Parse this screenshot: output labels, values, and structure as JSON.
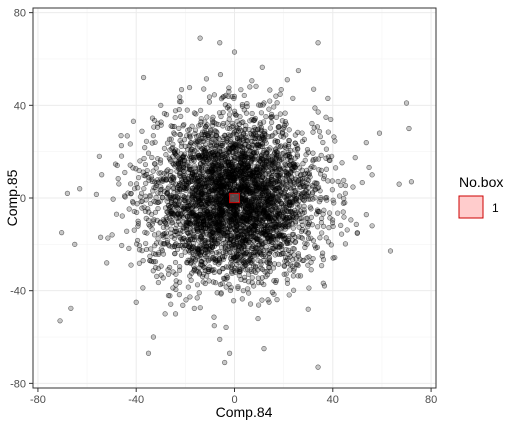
{
  "chart_data": {
    "type": "scatter",
    "title": "",
    "xlabel": "Comp.84",
    "ylabel": "Comp.85",
    "xlim": [
      -82,
      82
    ],
    "ylim": [
      -82,
      82
    ],
    "xticks": [
      -80,
      -40,
      0,
      40,
      80
    ],
    "yticks": [
      -80,
      -40,
      0,
      40,
      80
    ],
    "grid": true,
    "point_color": "#000000",
    "point_fill_opacity": 0.22,
    "point_count": 4000,
    "spread_sd": 17,
    "outliers": [
      {
        "x": -71,
        "y": -53
      },
      {
        "x": -68,
        "y": 2
      },
      {
        "x": -63,
        "y": 4
      },
      {
        "x": -65,
        "y": -20
      },
      {
        "x": -37,
        "y": 52
      },
      {
        "x": -35,
        "y": -67
      },
      {
        "x": -33,
        "y": -60
      },
      {
        "x": -14,
        "y": 69
      },
      {
        "x": -6,
        "y": 67
      },
      {
        "x": -6,
        "y": -61
      },
      {
        "x": -4,
        "y": -71
      },
      {
        "x": -2,
        "y": -67
      },
      {
        "x": 0,
        "y": 63
      },
      {
        "x": 12,
        "y": -65
      },
      {
        "x": 34,
        "y": 67
      },
      {
        "x": 34,
        "y": -73
      },
      {
        "x": 70,
        "y": 41
      },
      {
        "x": 71,
        "y": 30
      },
      {
        "x": 72,
        "y": 7
      },
      {
        "x": 67,
        "y": 6
      },
      {
        "x": 59,
        "y": 28
      },
      {
        "x": 56,
        "y": 10
      },
      {
        "x": 50,
        "y": -15
      },
      {
        "x": 56,
        "y": -12
      },
      {
        "x": -55,
        "y": 18
      },
      {
        "x": -52,
        "y": -28
      },
      {
        "x": 38,
        "y": 43
      },
      {
        "x": -30,
        "y": 40
      },
      {
        "x": 26,
        "y": 55
      },
      {
        "x": -40,
        "y": -45
      },
      {
        "x": 30,
        "y": -48
      },
      {
        "x": -24,
        "y": -50
      }
    ],
    "box": {
      "x": 0,
      "y": 0,
      "width": 4,
      "height": 4,
      "stroke": "#cc0000",
      "fill": "#ffcccc"
    },
    "legend": {
      "title": "No.box",
      "placement": "right",
      "entries": [
        {
          "label": "1",
          "fill": "#ffcccc",
          "stroke": "#cc0000"
        }
      ]
    }
  }
}
